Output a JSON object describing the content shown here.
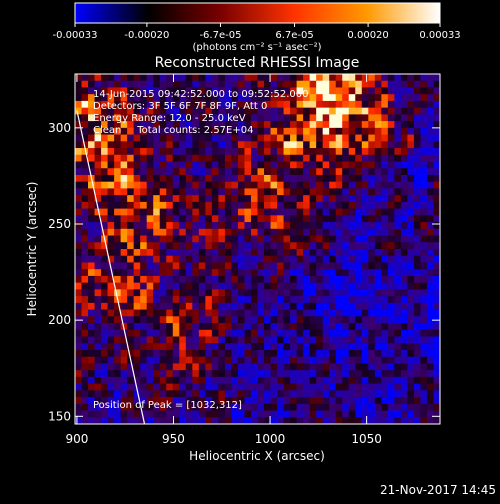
{
  "chart_data": {
    "type": "heatmap",
    "title": "Reconstructed RHESSI Image",
    "xlabel": "Heliocentric X (arcsec)",
    "ylabel": "Heliocentric Y (arcsec)",
    "xlim": [
      899,
      1088
    ],
    "ylim": [
      146,
      328
    ],
    "x_ticks": [
      900,
      950,
      1000,
      1050
    ],
    "y_ticks": [
      150,
      200,
      250,
      300
    ],
    "colorbar": {
      "min": -0.00033,
      "max": 0.00033,
      "ticks": [
        -0.00033,
        -0.0002,
        -6.7e-05,
        6.7e-05,
        0.0002,
        0.00033
      ],
      "tick_labels": [
        "-0.00033",
        "-0.00020",
        "-6.7e-05",
        "6.7e-05",
        "0.00020",
        "0.00033"
      ],
      "units_label": "(photons cm⁻² s⁻¹ asec⁻²)"
    },
    "annotations": [
      "14-Jun-2015 09:42:52.000 to 09:52:52.000",
      "Detectors: 3F 5F 6F 7F 8F 9F, Att 0",
      "Energy Range: 12.0 - 25.0 keV",
      "Clean     Total counts: 2.57E+04"
    ],
    "peak_label": "Position of Peak = [1032,312]",
    "peak_position": [
      1032,
      312
    ],
    "limb_line": [
      [
        900,
        309
      ],
      [
        935,
        146
      ]
    ],
    "grid": false,
    "colormap": [
      "#0000ff",
      "#000000",
      "#7a0000",
      "#ff3300",
      "#ff9900",
      "#ffffff"
    ]
  },
  "footer_timestamp": "21-Nov-2017 14:45"
}
